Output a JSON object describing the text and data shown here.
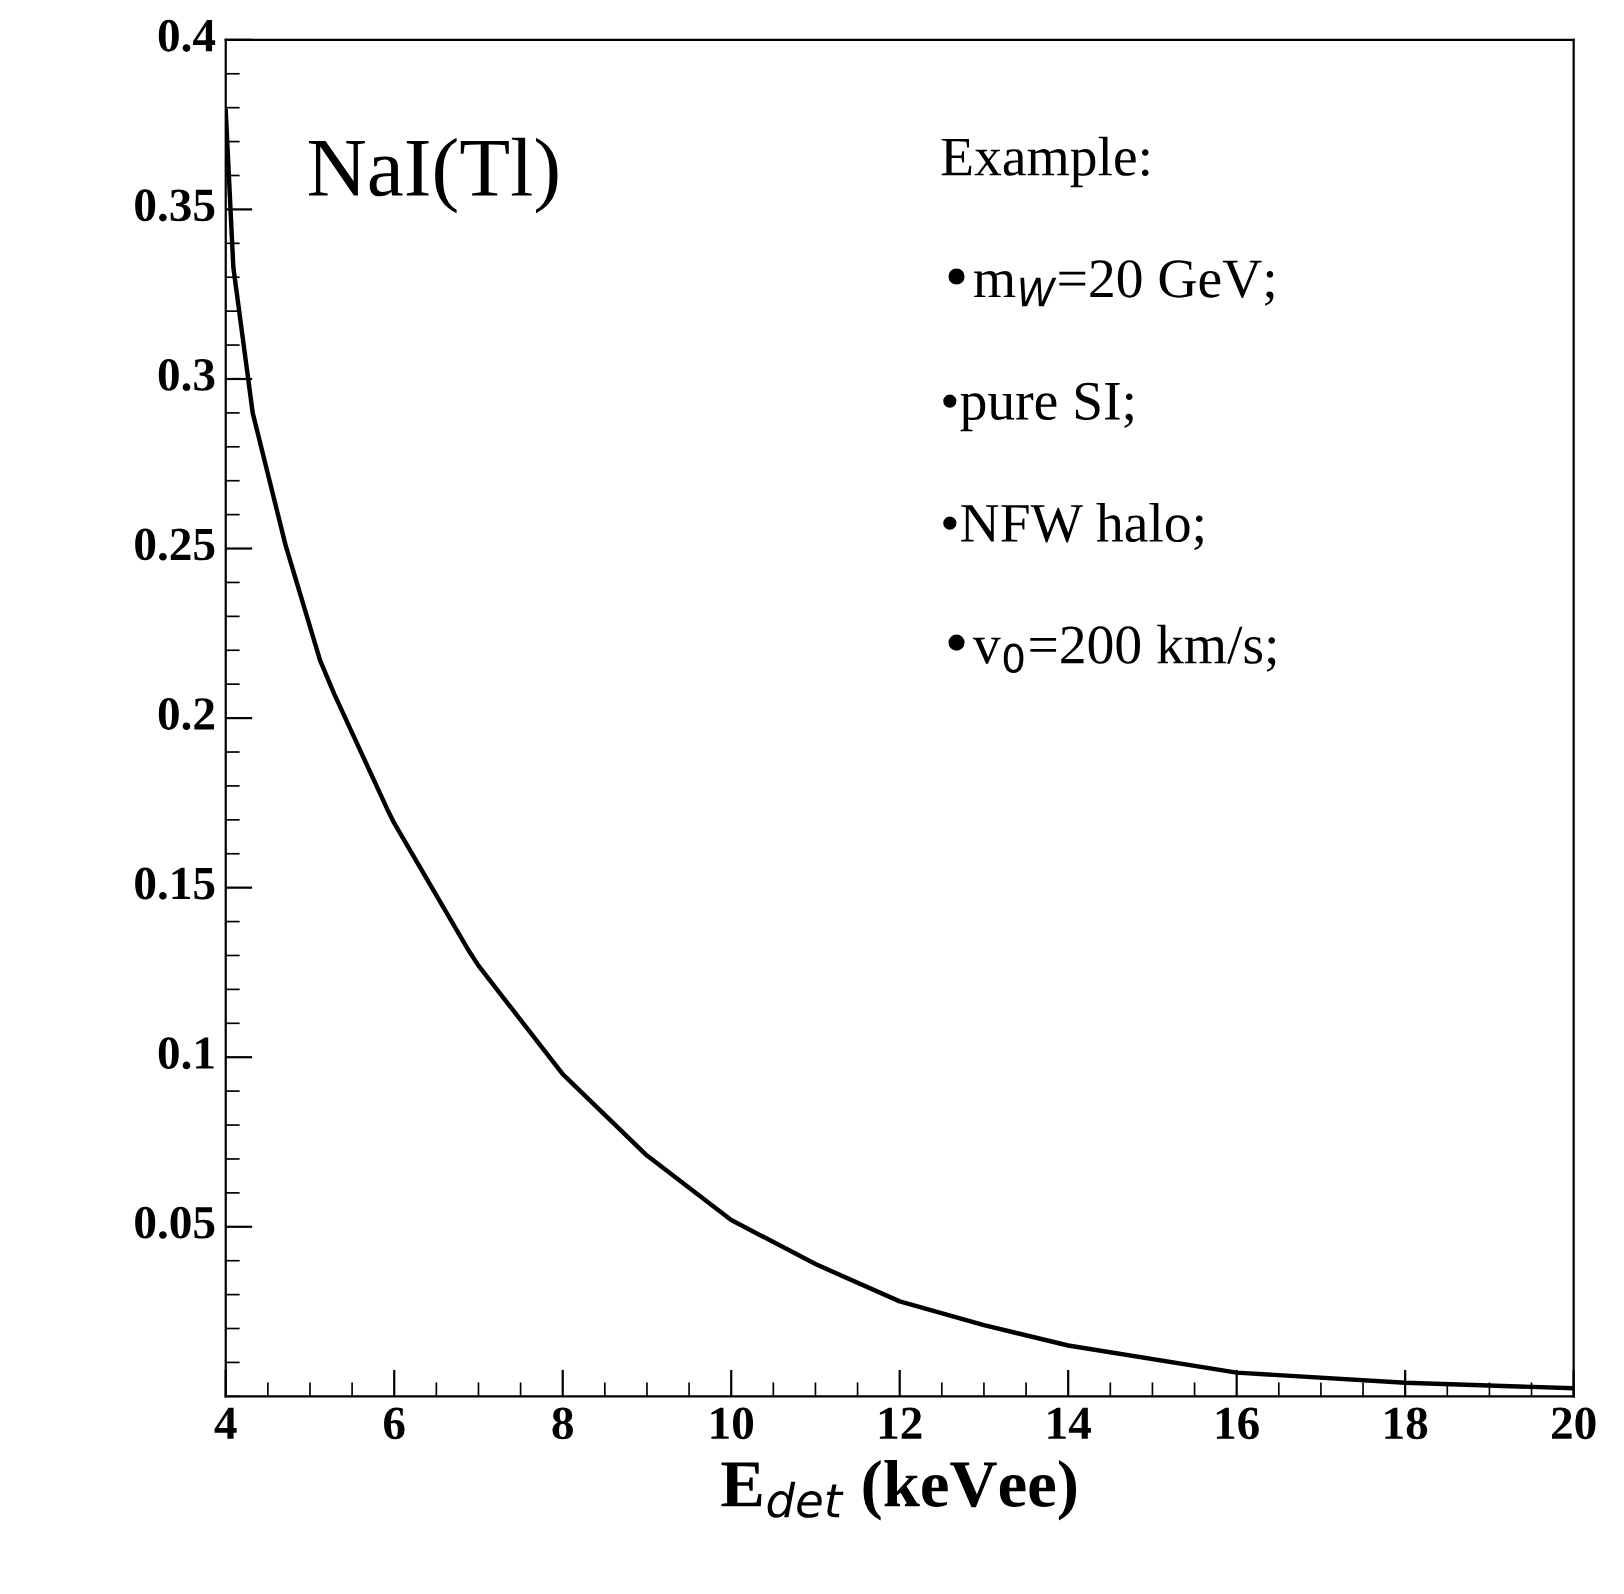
{
  "chart_data": {
    "type": "line",
    "xlabel": "E$_{det}$ (keVee)",
    "x": [
      4,
      4.09,
      4.32,
      4.71,
      5.12,
      5.29,
      5.92,
      6.0,
      6.87,
      7.0,
      8.0,
      9.0,
      10.0,
      11.0,
      12.0,
      13.0,
      14.0,
      16.0,
      18.0,
      20.0
    ],
    "series": [
      {
        "color": "#000000",
        "values": [
          0.379,
          0.333,
          0.29,
          0.251,
          0.217,
          0.207,
          0.173,
          0.169,
          0.132,
          0.127,
          0.095,
          0.071,
          0.052,
          0.039,
          0.028,
          0.021,
          0.015,
          0.007,
          0.004,
          0.0024
        ]
      }
    ],
    "xlim": [
      4,
      20
    ],
    "xticks": [
      4,
      6,
      8,
      10,
      12,
      14,
      16,
      18,
      20
    ],
    "ylim": [
      0,
      0.4
    ],
    "yticks": [
      0.05,
      0.1,
      0.15,
      0.2,
      0.25,
      0.3,
      0.35,
      0.4
    ],
    "annotations": [
      "NaI(Tl)",
      "Example:",
      "•m$_{W}$=20 GeV;",
      "•pure SI;",
      "•NFW halo;",
      "•v$_{0}$=200 km/s;"
    ],
    "grid": false,
    "legend": false,
    "marker": "none",
    "line_style": "solid"
  }
}
